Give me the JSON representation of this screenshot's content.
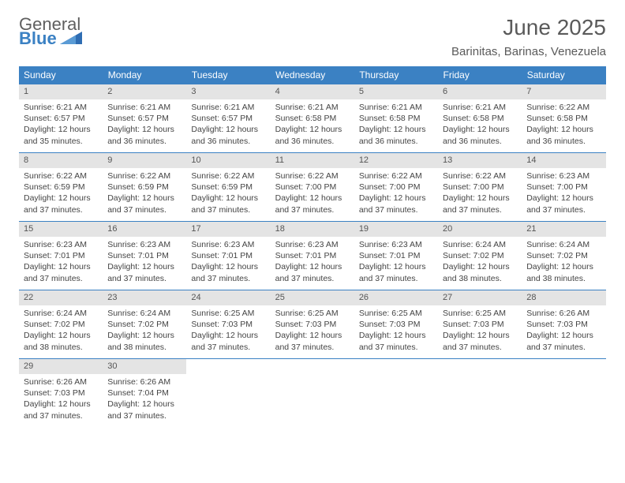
{
  "logo": {
    "word_top": "General",
    "word_bottom": "Blue",
    "text_color_top": "#5f5f5f",
    "text_color_bottom": "#3b81c3",
    "shape_color": "#2f6db3"
  },
  "header": {
    "month_title": "June 2025",
    "location": "Barinitas, Barinas, Venezuela",
    "title_color": "#5a5a5a"
  },
  "calendar": {
    "header_bg": "#3b81c3",
    "header_fg": "#ffffff",
    "daynum_bg": "#e4e4e4",
    "border_color": "#3b81c3",
    "cell_font_size": 10.5,
    "header_font_size": 12,
    "weekdays": [
      "Sunday",
      "Monday",
      "Tuesday",
      "Wednesday",
      "Thursday",
      "Friday",
      "Saturday"
    ],
    "days": [
      {
        "n": 1,
        "sunrise": "6:21 AM",
        "sunset": "6:57 PM",
        "daylight": "12 hours and 35 minutes."
      },
      {
        "n": 2,
        "sunrise": "6:21 AM",
        "sunset": "6:57 PM",
        "daylight": "12 hours and 36 minutes."
      },
      {
        "n": 3,
        "sunrise": "6:21 AM",
        "sunset": "6:57 PM",
        "daylight": "12 hours and 36 minutes."
      },
      {
        "n": 4,
        "sunrise": "6:21 AM",
        "sunset": "6:58 PM",
        "daylight": "12 hours and 36 minutes."
      },
      {
        "n": 5,
        "sunrise": "6:21 AM",
        "sunset": "6:58 PM",
        "daylight": "12 hours and 36 minutes."
      },
      {
        "n": 6,
        "sunrise": "6:21 AM",
        "sunset": "6:58 PM",
        "daylight": "12 hours and 36 minutes."
      },
      {
        "n": 7,
        "sunrise": "6:22 AM",
        "sunset": "6:58 PM",
        "daylight": "12 hours and 36 minutes."
      },
      {
        "n": 8,
        "sunrise": "6:22 AM",
        "sunset": "6:59 PM",
        "daylight": "12 hours and 37 minutes."
      },
      {
        "n": 9,
        "sunrise": "6:22 AM",
        "sunset": "6:59 PM",
        "daylight": "12 hours and 37 minutes."
      },
      {
        "n": 10,
        "sunrise": "6:22 AM",
        "sunset": "6:59 PM",
        "daylight": "12 hours and 37 minutes."
      },
      {
        "n": 11,
        "sunrise": "6:22 AM",
        "sunset": "7:00 PM",
        "daylight": "12 hours and 37 minutes."
      },
      {
        "n": 12,
        "sunrise": "6:22 AM",
        "sunset": "7:00 PM",
        "daylight": "12 hours and 37 minutes."
      },
      {
        "n": 13,
        "sunrise": "6:22 AM",
        "sunset": "7:00 PM",
        "daylight": "12 hours and 37 minutes."
      },
      {
        "n": 14,
        "sunrise": "6:23 AM",
        "sunset": "7:00 PM",
        "daylight": "12 hours and 37 minutes."
      },
      {
        "n": 15,
        "sunrise": "6:23 AM",
        "sunset": "7:01 PM",
        "daylight": "12 hours and 37 minutes."
      },
      {
        "n": 16,
        "sunrise": "6:23 AM",
        "sunset": "7:01 PM",
        "daylight": "12 hours and 37 minutes."
      },
      {
        "n": 17,
        "sunrise": "6:23 AM",
        "sunset": "7:01 PM",
        "daylight": "12 hours and 37 minutes."
      },
      {
        "n": 18,
        "sunrise": "6:23 AM",
        "sunset": "7:01 PM",
        "daylight": "12 hours and 37 minutes."
      },
      {
        "n": 19,
        "sunrise": "6:23 AM",
        "sunset": "7:01 PM",
        "daylight": "12 hours and 37 minutes."
      },
      {
        "n": 20,
        "sunrise": "6:24 AM",
        "sunset": "7:02 PM",
        "daylight": "12 hours and 38 minutes."
      },
      {
        "n": 21,
        "sunrise": "6:24 AM",
        "sunset": "7:02 PM",
        "daylight": "12 hours and 38 minutes."
      },
      {
        "n": 22,
        "sunrise": "6:24 AM",
        "sunset": "7:02 PM",
        "daylight": "12 hours and 38 minutes."
      },
      {
        "n": 23,
        "sunrise": "6:24 AM",
        "sunset": "7:02 PM",
        "daylight": "12 hours and 38 minutes."
      },
      {
        "n": 24,
        "sunrise": "6:25 AM",
        "sunset": "7:03 PM",
        "daylight": "12 hours and 37 minutes."
      },
      {
        "n": 25,
        "sunrise": "6:25 AM",
        "sunset": "7:03 PM",
        "daylight": "12 hours and 37 minutes."
      },
      {
        "n": 26,
        "sunrise": "6:25 AM",
        "sunset": "7:03 PM",
        "daylight": "12 hours and 37 minutes."
      },
      {
        "n": 27,
        "sunrise": "6:25 AM",
        "sunset": "7:03 PM",
        "daylight": "12 hours and 37 minutes."
      },
      {
        "n": 28,
        "sunrise": "6:26 AM",
        "sunset": "7:03 PM",
        "daylight": "12 hours and 37 minutes."
      },
      {
        "n": 29,
        "sunrise": "6:26 AM",
        "sunset": "7:03 PM",
        "daylight": "12 hours and 37 minutes."
      },
      {
        "n": 30,
        "sunrise": "6:26 AM",
        "sunset": "7:04 PM",
        "daylight": "12 hours and 37 minutes."
      }
    ],
    "labels": {
      "sunrise": "Sunrise:",
      "sunset": "Sunset:",
      "daylight": "Daylight:"
    },
    "start_day_index": 0,
    "weeks": 5
  }
}
